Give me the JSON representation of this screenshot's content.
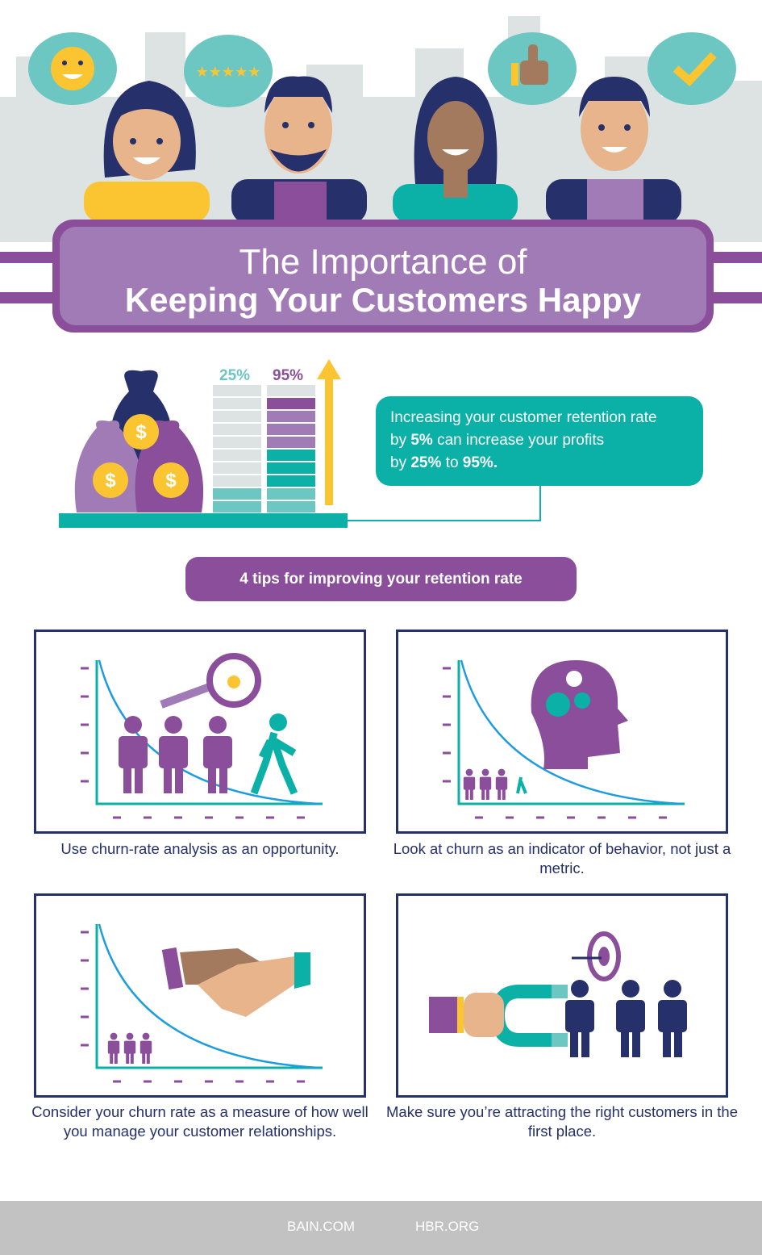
{
  "title": {
    "line1": "The Importance of",
    "line2": "Keeping Your Customers Happy"
  },
  "stat": {
    "col_a_label": "25%",
    "col_b_label": "95%",
    "callout_line1": "Increasing your customer retention rate",
    "callout_line2_pre": "by ",
    "callout_line2_bold": "5%",
    "callout_line2_post": " can increase your profits",
    "callout_line3_pre": "by ",
    "callout_line3_bold1": "25%",
    "callout_line3_mid": " to ",
    "callout_line3_bold2": "95%."
  },
  "tips_heading": "4 tips for improving your retention rate",
  "tips": [
    {
      "caption": "Use churn-rate analysis as an opportunity."
    },
    {
      "caption": "Look at churn as an indicator of behavior, not just a metric."
    },
    {
      "caption": "Consider your churn rate as a measure of how well you manage your customer relationships."
    },
    {
      "caption": "Make sure you’re attracting the right customers in the first place."
    }
  ],
  "footer": {
    "left": "BAIN.COM",
    "right": "HBR.ORG"
  },
  "colors": {
    "purple": "#8a4e9b",
    "light_purple": "#a07bb5",
    "teal": "#0bb0a6",
    "navy": "#26306a",
    "yellow": "#fbc531"
  }
}
